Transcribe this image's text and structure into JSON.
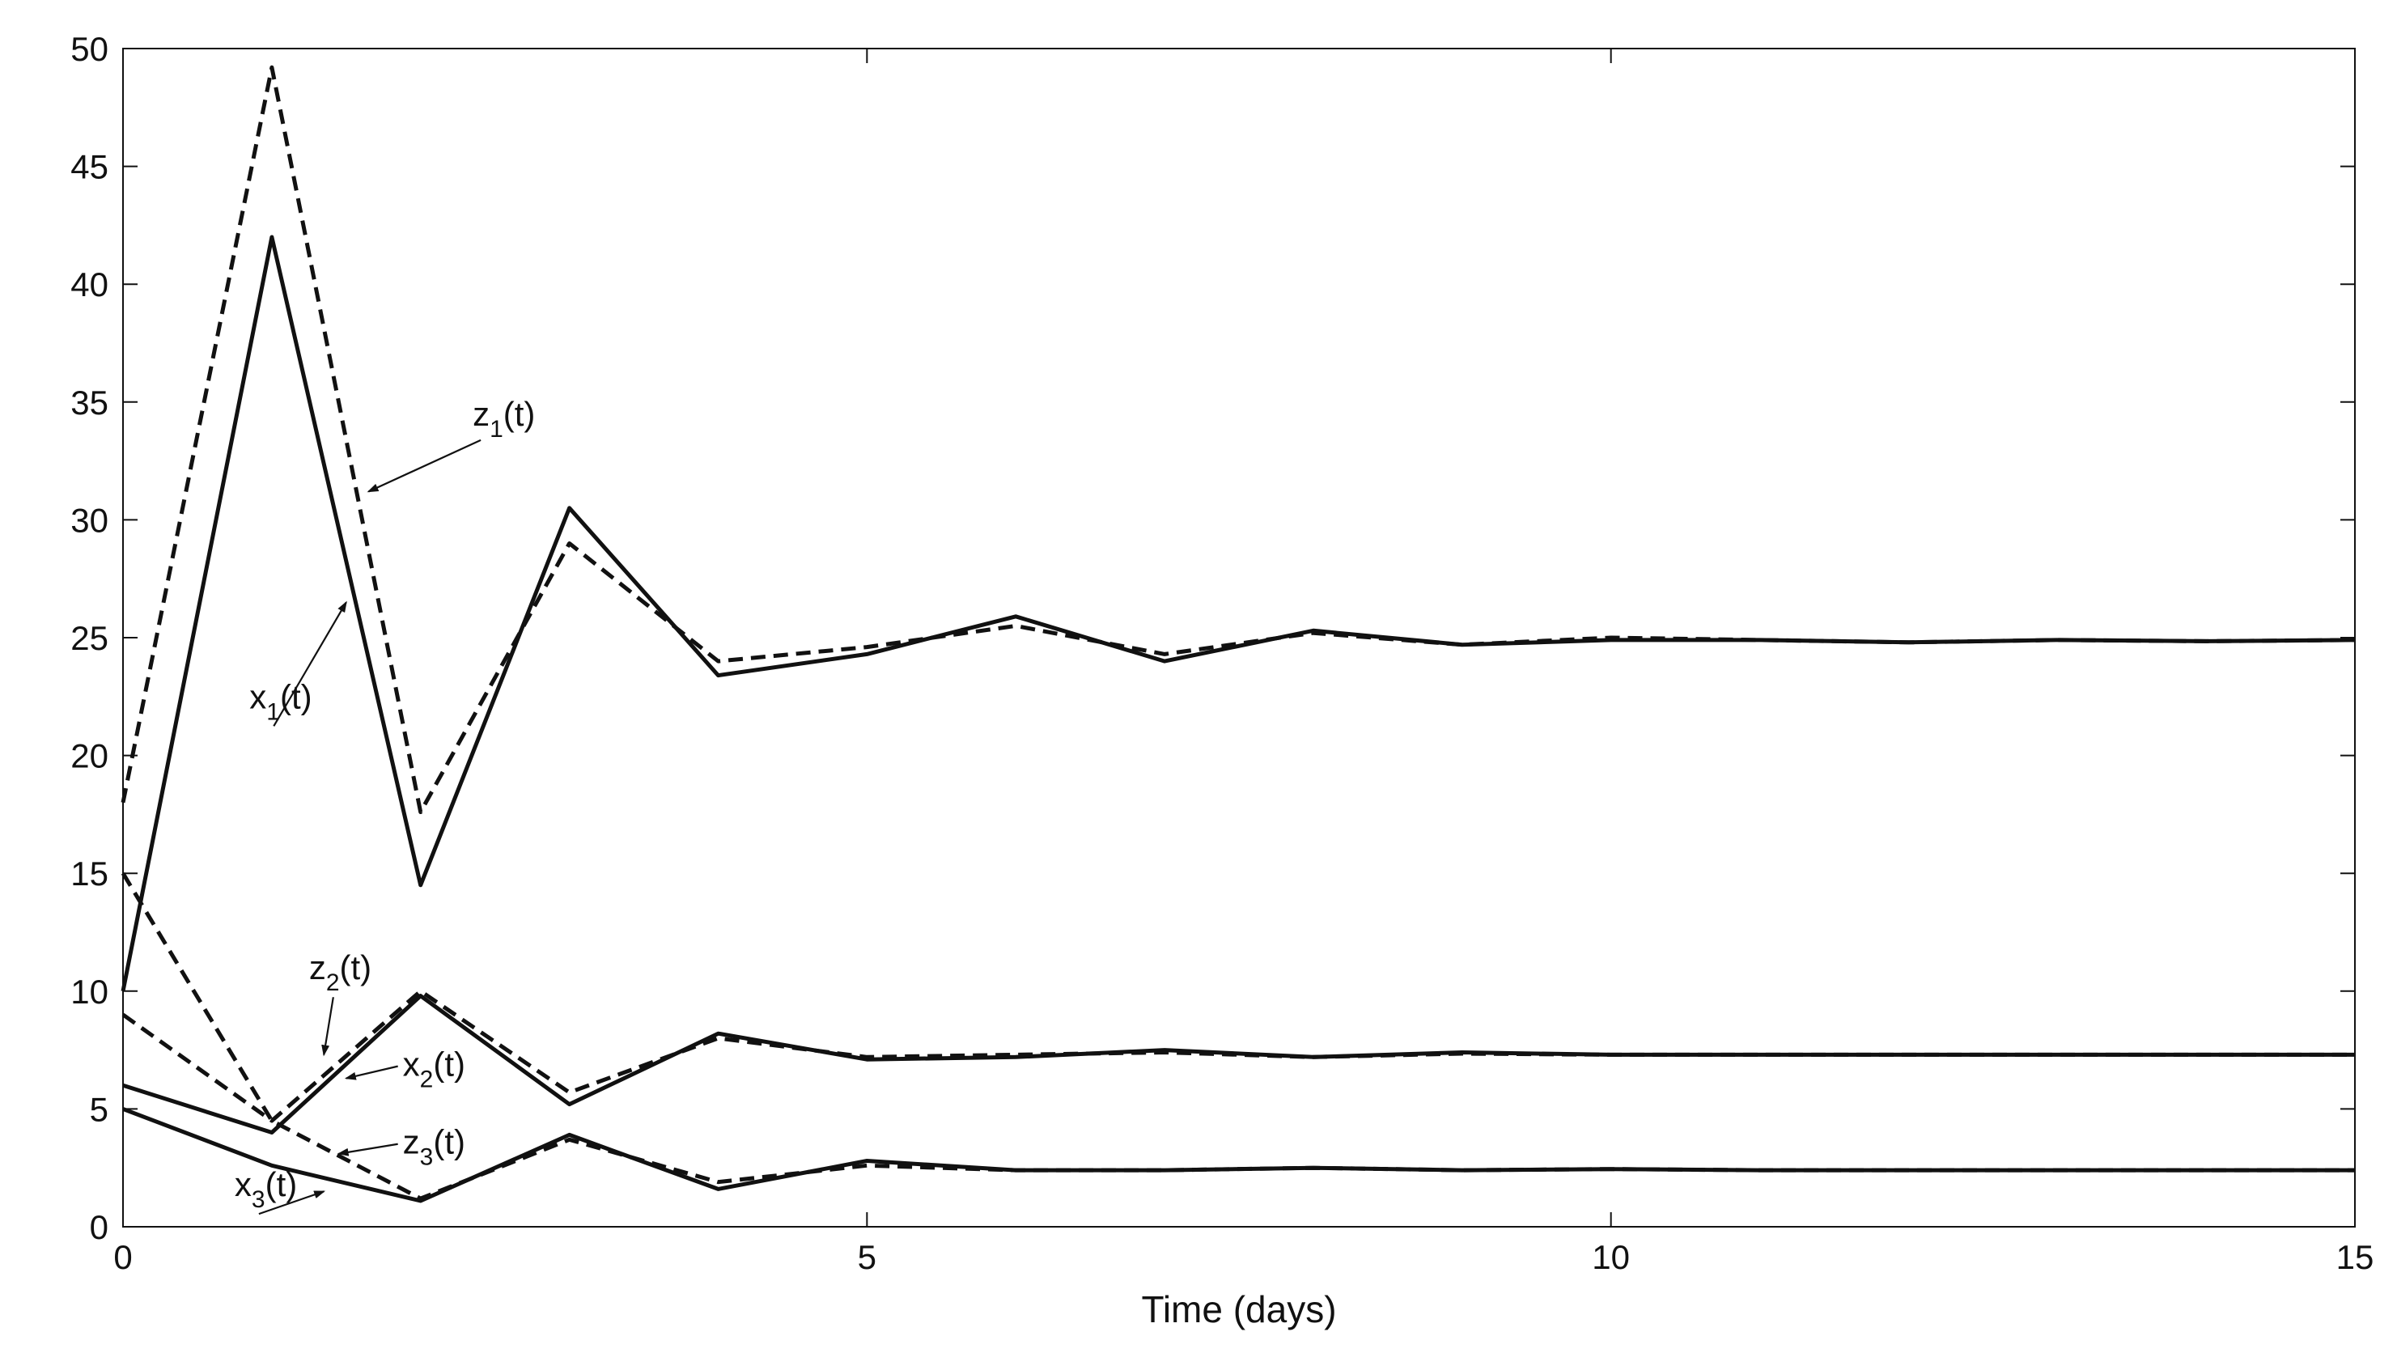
{
  "chart_data": {
    "type": "line",
    "title": "",
    "xlabel": "Time (days)",
    "ylabel": "",
    "xlim": [
      0,
      15
    ],
    "ylim": [
      0,
      50
    ],
    "xticks": [
      0,
      5,
      10,
      15
    ],
    "xtick_labels": [
      "0",
      "5",
      "10",
      "15"
    ],
    "yticks": [
      0,
      5,
      10,
      15,
      20,
      25,
      30,
      35,
      40,
      45,
      50
    ],
    "ytick_labels": [
      "0",
      "5",
      "10",
      "15",
      "20",
      "25",
      "30",
      "35",
      "40",
      "45",
      "50"
    ],
    "grid": false,
    "x": [
      0,
      1,
      2,
      3,
      4,
      5,
      6,
      7,
      8,
      9,
      10,
      11,
      12,
      13,
      14,
      15
    ],
    "series": [
      {
        "name": "x1(t)",
        "style": "solid",
        "color": "#111111",
        "values": [
          10,
          42,
          14.5,
          30.5,
          23.4,
          24.3,
          25.9,
          24.0,
          25.3,
          24.7,
          24.9,
          24.9,
          24.8,
          24.9,
          24.85,
          24.9
        ]
      },
      {
        "name": "z1(t)",
        "style": "dashed",
        "color": "#111111",
        "values": [
          18,
          49.2,
          17.6,
          29.0,
          24.0,
          24.6,
          25.5,
          24.3,
          25.2,
          24.7,
          25.0,
          24.9,
          24.8,
          24.9,
          24.85,
          24.9
        ]
      },
      {
        "name": "x2(t)",
        "style": "solid",
        "color": "#111111",
        "values": [
          6,
          4.0,
          9.8,
          5.2,
          8.2,
          7.1,
          7.2,
          7.5,
          7.2,
          7.4,
          7.3,
          7.3,
          7.3,
          7.3,
          7.3,
          7.3
        ]
      },
      {
        "name": "z2(t)",
        "style": "dashed",
        "color": "#111111",
        "values": [
          9,
          4.5,
          10.0,
          5.7,
          8.0,
          7.2,
          7.3,
          7.4,
          7.2,
          7.35,
          7.3,
          7.3,
          7.3,
          7.3,
          7.3,
          7.3
        ]
      },
      {
        "name": "x3(t)",
        "style": "solid",
        "color": "#111111",
        "values": [
          5,
          2.6,
          1.1,
          3.9,
          1.6,
          2.8,
          2.4,
          2.4,
          2.5,
          2.4,
          2.45,
          2.4,
          2.4,
          2.4,
          2.4,
          2.4
        ]
      },
      {
        "name": "z3(t)",
        "style": "dashed",
        "color": "#111111",
        "values": [
          15,
          4.5,
          1.2,
          3.7,
          1.9,
          2.6,
          2.4,
          2.4,
          2.5,
          2.4,
          2.45,
          2.4,
          2.4,
          2.4,
          2.4,
          2.4
        ]
      }
    ],
    "annotations": [
      {
        "main": "z",
        "sub": "1",
        "tail": "(t)",
        "at": [
          2.35,
          34.0
        ],
        "arrow_to": [
          1.65,
          31.2
        ]
      },
      {
        "main": "x",
        "sub": "1",
        "tail": "(t)",
        "at": [
          0.85,
          22.0
        ],
        "arrow_to": [
          1.5,
          26.5
        ]
      },
      {
        "main": "z",
        "sub": "2",
        "tail": "(t)",
        "at": [
          1.25,
          10.5
        ],
        "arrow_to": [
          1.35,
          7.3
        ]
      },
      {
        "main": "x",
        "sub": "2",
        "tail": "(t)",
        "at": [
          1.88,
          6.4
        ],
        "arrow_to": [
          1.5,
          6.3
        ]
      },
      {
        "main": "z",
        "sub": "3",
        "tail": "(t)",
        "at": [
          1.88,
          3.1
        ],
        "arrow_to": [
          1.45,
          3.1
        ]
      },
      {
        "main": "x",
        "sub": "3",
        "tail": "(t)",
        "at": [
          0.75,
          1.3
        ],
        "arrow_to": [
          1.35,
          1.5
        ]
      }
    ]
  }
}
